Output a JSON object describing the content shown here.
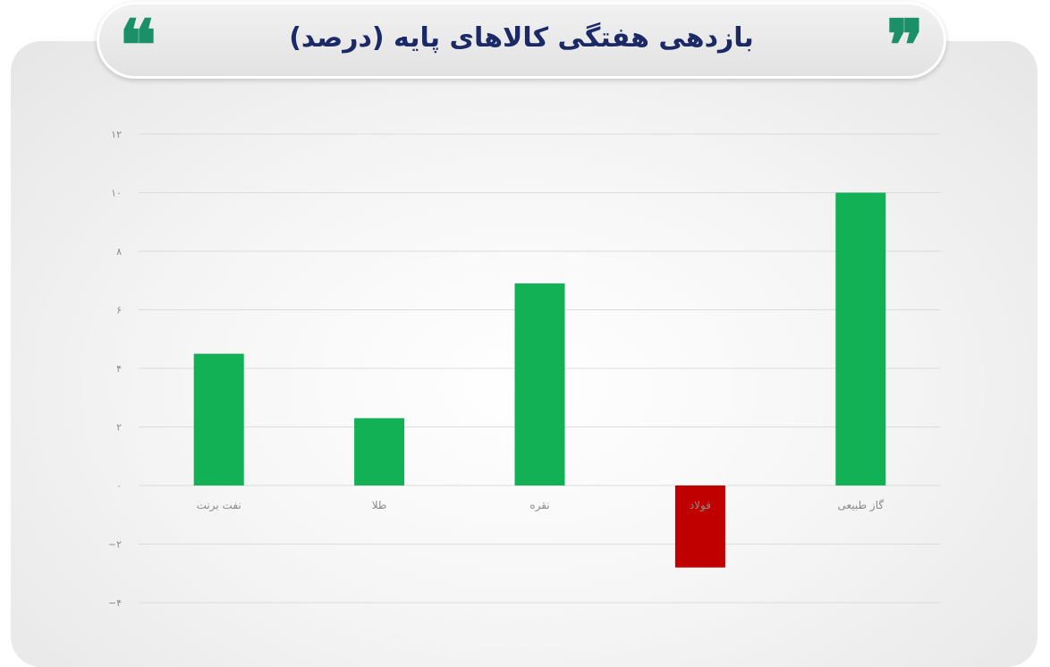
{
  "chart_data": {
    "type": "bar",
    "title": "بازدهی هفتگی کالاهای پایه (درصد)",
    "categories": [
      "نفت برنت",
      "طلا",
      "نقره",
      "فولاد",
      "گاز طبیعی"
    ],
    "values": [
      4.5,
      2.3,
      6.9,
      -2.8,
      10.0
    ],
    "ylim": [
      -4,
      12
    ],
    "yticks": [
      12,
      10,
      8,
      6,
      4,
      2,
      0,
      -2,
      -4
    ],
    "ytick_labels": [
      "۱۲",
      "۱۰",
      "۸",
      "۶",
      "۴",
      "۲",
      "۰",
      "−۲",
      "−۴"
    ],
    "grid": true,
    "colors": {
      "positive": "#12b156",
      "negative": "#c00000",
      "title": "#1b2a66",
      "quote": "#1a8f68"
    }
  },
  "decor": {
    "quote_left": "❝",
    "quote_right": "❞"
  }
}
